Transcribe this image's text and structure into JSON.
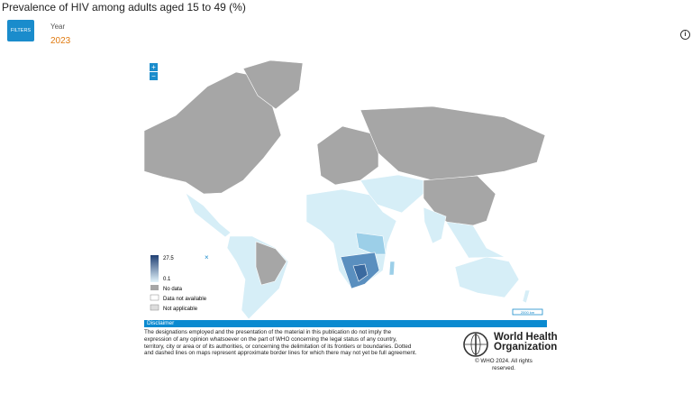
{
  "header": {
    "title": "Prevalence of HIV among adults aged 15 to 49 (%)",
    "filters_button": "FILTERS",
    "filter_label": "Year",
    "filter_value": "2023",
    "info_icon": "i"
  },
  "map": {
    "zoom_in": "+",
    "zoom_out": "−",
    "close_legend": "×",
    "scale_bar": "2000 km",
    "legend": {
      "max": 27.5,
      "min": 0.1,
      "no_data": "No data",
      "data_not_available": "Data not available",
      "not_applicable": "Not applicable"
    }
  },
  "disclaimer": {
    "heading": "Disclaimer",
    "lines": [
      "The designations employed and the presentation of the material in this publication do not imply the",
      "expression of any opinion whatsoever on the part of WHO concerning the legal status of any country,",
      "territory, city or area or of its authorities, or concerning the delimitation of its frontiers or boundaries. Dotted",
      "and dashed lines on maps represent approximate border lines for which there may not yet be full agreement."
    ]
  },
  "footer": {
    "org_line1": "World Health",
    "org_line2": "Organization",
    "copyright": "© WHO 2024. All rights reserved."
  }
}
